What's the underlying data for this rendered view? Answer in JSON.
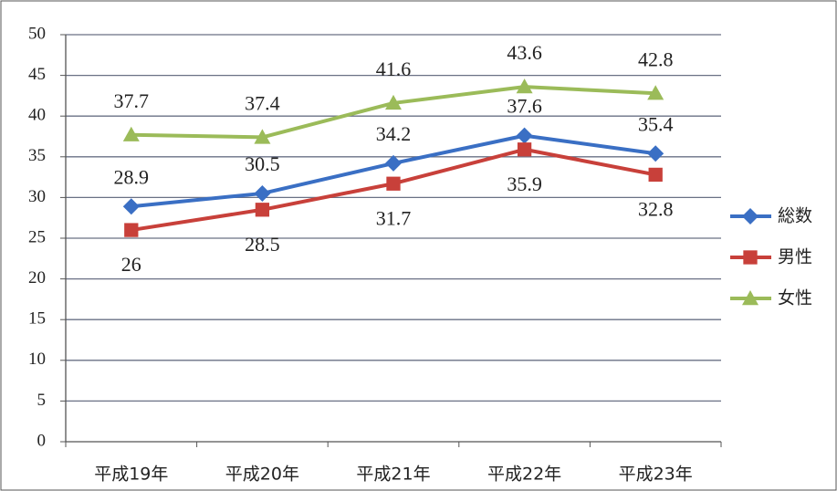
{
  "chart_data": {
    "type": "line",
    "categories": [
      "平成19年",
      "平成20年",
      "平成21年",
      "平成22年",
      "平成23年"
    ],
    "series": [
      {
        "name": "総数",
        "color": "#3a6fc4",
        "marker": "diamond",
        "values": [
          28.9,
          30.5,
          34.2,
          37.6,
          35.4
        ]
      },
      {
        "name": "男性",
        "color": "#c8403a",
        "marker": "square",
        "values": [
          26,
          28.5,
          31.7,
          35.9,
          32.8
        ]
      },
      {
        "name": "女性",
        "color": "#9bbb59",
        "marker": "triangle",
        "values": [
          37.7,
          37.4,
          41.6,
          43.6,
          42.8
        ]
      }
    ],
    "ylim": [
      0,
      50
    ],
    "yticks": [
      0,
      5,
      10,
      15,
      20,
      25,
      30,
      35,
      40,
      45,
      50
    ],
    "grid": true,
    "legend": "right"
  }
}
